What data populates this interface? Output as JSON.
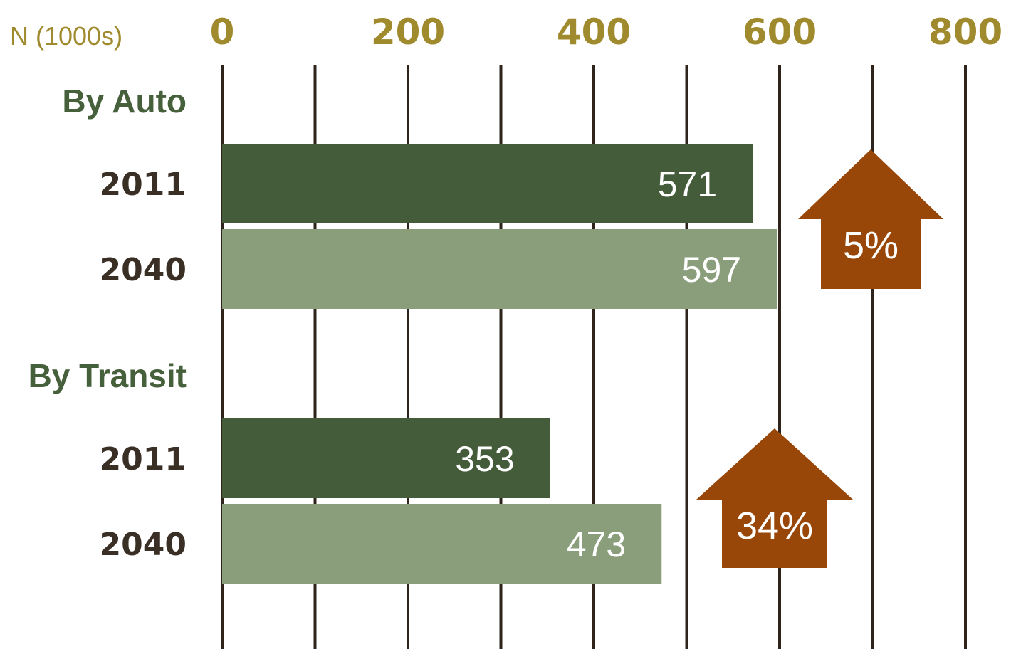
{
  "chart_data": {
    "type": "bar",
    "orientation": "horizontal",
    "axis_title": "N (1000s)",
    "xlim": [
      0,
      800
    ],
    "ticks": [
      0,
      200,
      400,
      600,
      800
    ],
    "tick_labels": [
      "0",
      "200",
      "400",
      "600",
      "800"
    ],
    "groups": [
      {
        "label": "By Auto",
        "bars": [
          {
            "label": "2011",
            "value": 571,
            "value_label": "571",
            "color": "#445c3a"
          },
          {
            "label": "2040",
            "value": 597,
            "value_label": "597",
            "color": "#8a9e7c"
          }
        ],
        "change": {
          "label": "5%",
          "color": "#984708"
        }
      },
      {
        "label": "By Transit",
        "bars": [
          {
            "label": "2011",
            "value": 353,
            "value_label": "353",
            "color": "#445c3a"
          },
          {
            "label": "2040",
            "value": 473,
            "value_label": "473",
            "color": "#8a9e7c"
          }
        ],
        "change": {
          "label": "34%",
          "color": "#984708"
        }
      }
    ],
    "grid": true,
    "legend": "none"
  }
}
